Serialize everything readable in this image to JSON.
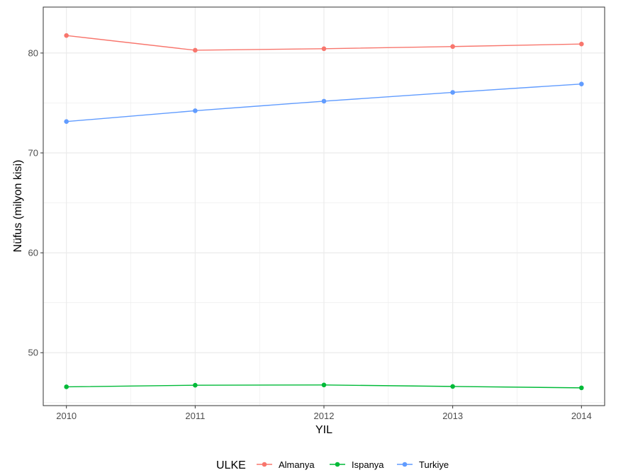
{
  "chart_data": {
    "type": "line",
    "title": "",
    "xlabel": "YIL",
    "ylabel": "Nüfus (milyon kisi)",
    "x": [
      2010,
      2011,
      2012,
      2013,
      2014
    ],
    "x_tick_labels": [
      "2010",
      "2011",
      "2012",
      "2013",
      "2014"
    ],
    "y_ticks": [
      50,
      60,
      70,
      80
    ],
    "y_tick_labels": [
      "50",
      "60",
      "70",
      "80"
    ],
    "xlim": [
      2009.82,
      2014.18
    ],
    "ylim": [
      44.7,
      84.6
    ],
    "grid": true,
    "legend": {
      "title": "ULKE",
      "position": "bottom"
    },
    "series": [
      {
        "name": "Almanya",
        "color": "#F8766D",
        "values": [
          81.75,
          80.28,
          80.43,
          80.65,
          80.9
        ]
      },
      {
        "name": "Ispanya",
        "color": "#00BA38",
        "values": [
          46.58,
          46.74,
          46.77,
          46.62,
          46.48
        ]
      },
      {
        "name": "Turkiye",
        "color": "#619CFF",
        "values": [
          73.14,
          74.22,
          75.18,
          76.06,
          76.9
        ]
      }
    ]
  }
}
